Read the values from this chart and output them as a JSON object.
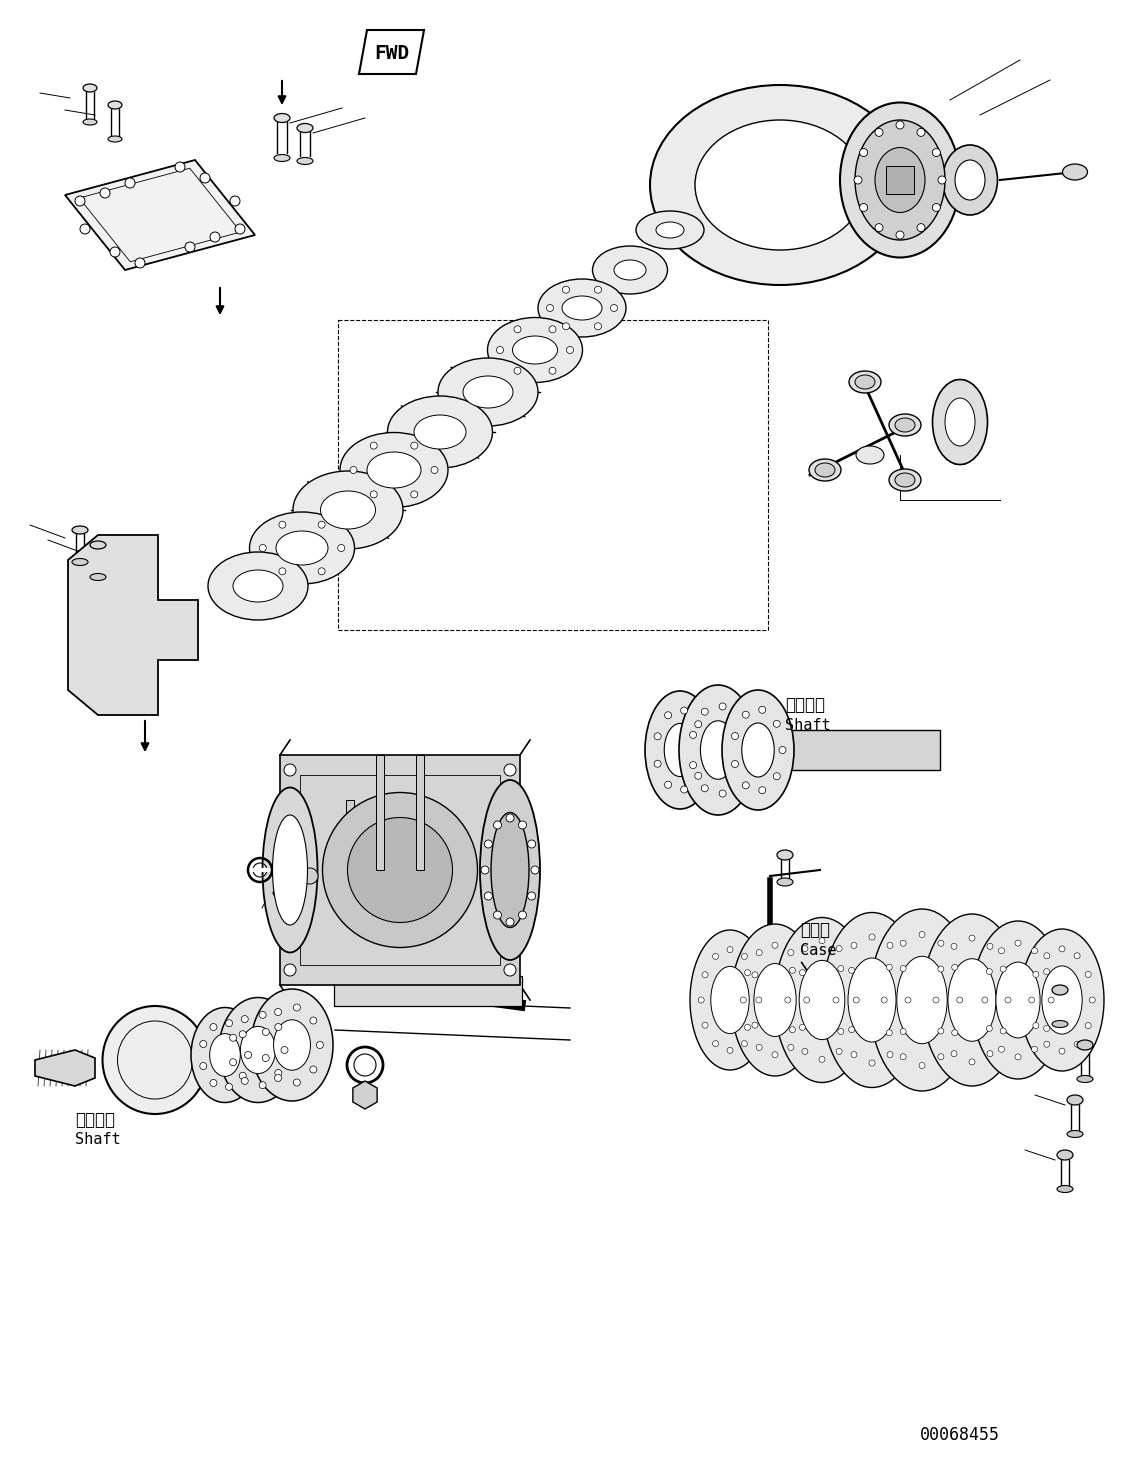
{
  "background_color": "#ffffff",
  "figure_width": 11.43,
  "figure_height": 14.69,
  "dpi": 100,
  "part_number": "00068455",
  "fwd_label": "FWD",
  "shaft_label_jp": "シャフト",
  "shaft_label_en": "Shaft",
  "case_label_jp": "ケース",
  "case_label_en": "Case",
  "line_color": "#000000",
  "line_width": 1.0
}
